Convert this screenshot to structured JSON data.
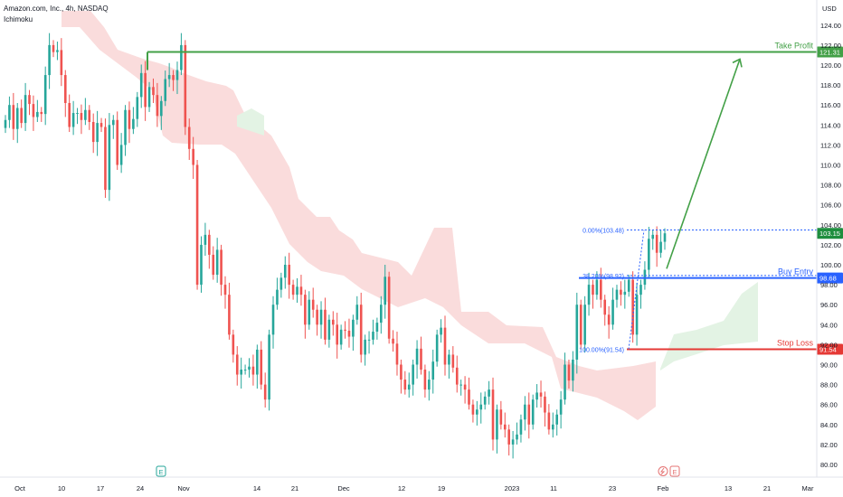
{
  "header": {
    "symbol_line": "Amazon.com, Inc., 4h, NASDAQ",
    "indicator": "Ichimoku"
  },
  "colors": {
    "bull": "#26a69a",
    "bear": "#ef5350",
    "cloud_red": "#fadcdc",
    "cloud_green": "#e3f3e4",
    "take_profit": "#43a047",
    "buy_entry": "#2962ff",
    "stop_loss": "#e53935",
    "last_price": "#1e8e3e",
    "fib": "#2962ff",
    "axis_text": "#131722"
  },
  "chart_data": {
    "type": "candlestick",
    "currency": "USD",
    "ylim": [
      79,
      125
    ],
    "y_ticks": [
      80.0,
      82.0,
      84.0,
      86.0,
      88.0,
      90.0,
      92.0,
      94.0,
      96.0,
      98.0,
      100.0,
      102.0,
      104.0,
      106.0,
      108.0,
      110.0,
      112.0,
      114.0,
      116.0,
      118.0,
      120.0,
      122.0,
      124.0
    ],
    "x_ticks": [
      "Oct",
      "10",
      "17",
      "24",
      "Nov",
      "14",
      "21",
      "Dec",
      "12",
      "19",
      "2023",
      "11",
      "23",
      "Feb",
      "13",
      "21",
      "Mar"
    ],
    "levels": [
      {
        "label": "Take Profit",
        "value": 121.31
      },
      {
        "label": "Buy Entry",
        "value": 98.68
      },
      {
        "label": "Stop Loss",
        "value": 91.54
      }
    ],
    "last_price": 103.15,
    "fib_labels": [
      {
        "label": "0.00%(103.48)",
        "value": 103.48
      },
      {
        "label": "38.20%(98.92)",
        "value": 98.92
      },
      {
        "label": "100.00%(91.54)",
        "value": 91.54
      }
    ],
    "events": [
      "E",
      "E"
    ],
    "candles_close": [
      114.5,
      116.0,
      113.6,
      115.7,
      114.2,
      117.0,
      116.1,
      114.8,
      115.3,
      115.1,
      119.0,
      122.0,
      121.3,
      121.5,
      119.0,
      116.2,
      113.8,
      115.2,
      115.2,
      114.5,
      115.5,
      114.3,
      112.3,
      114.2,
      113.8,
      107.5,
      114.0,
      114.5,
      110.0,
      112.0,
      115.5,
      113.6,
      114.6,
      116.8,
      119.2,
      115.8,
      117.8,
      117.0,
      114.9,
      116.4,
      118.6,
      119.0,
      118.5,
      119.5,
      122.0,
      113.8,
      111.6,
      110.0,
      98.0,
      102.0,
      103.0,
      101.0,
      99.0,
      101.5,
      98.0,
      97.0,
      93.0,
      91.0,
      89.0,
      89.5,
      89.5,
      89.8,
      89.0,
      91.5,
      88.0,
      86.5,
      93.0,
      96.0,
      97.5,
      98.7,
      100.0,
      98.0,
      97.0,
      97.8,
      97.0,
      94.0,
      96.5,
      95.5,
      94.0,
      95.5,
      92.5,
      94.5,
      94.0,
      92.0,
      93.5,
      93.4,
      92.8,
      94.5,
      96.0,
      91.0,
      92.5,
      92.5,
      93.3,
      94.2,
      96.0,
      98.8,
      92.6,
      92.1,
      90.0,
      88.5,
      87.5,
      88.0,
      90.0,
      91.6,
      89.5,
      87.5,
      88.5,
      90.3,
      93.0,
      93.7,
      90.0,
      91.0,
      89.7,
      88.0,
      88.0,
      87.5,
      86.0,
      85.0,
      85.5,
      86.0,
      86.8,
      87.5,
      82.5,
      85.5,
      84.0,
      83.5,
      82.0,
      82.5,
      83.0,
      84.5,
      86.0,
      84.0,
      86.5,
      87.2,
      86.8,
      85.2,
      83.5,
      84.0,
      85.0,
      86.5,
      90.0,
      88.4,
      90.5,
      96.0,
      92.0,
      96.0,
      98.0,
      97.0,
      98.5,
      96.5,
      95.0,
      94.0,
      96.5,
      97.5,
      97.0,
      97.3,
      98.5,
      93.0,
      97.0,
      98.0,
      99.5,
      102.6,
      103.0,
      101.2,
      102.3,
      103.15
    ]
  }
}
